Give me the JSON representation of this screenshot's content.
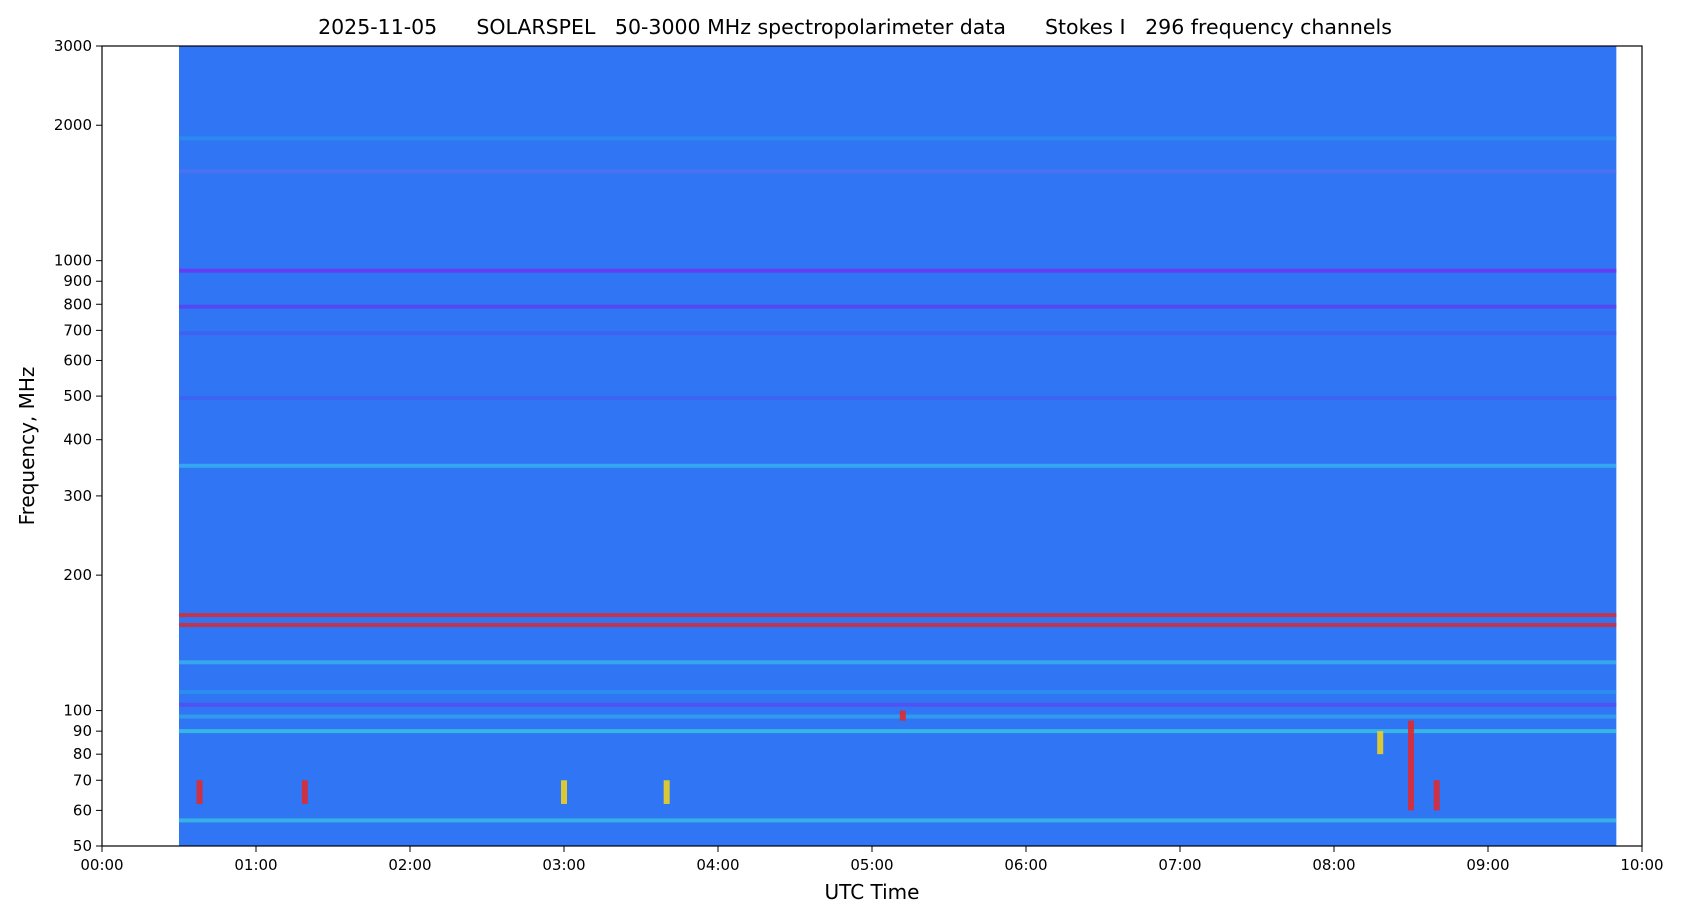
{
  "chart_data": {
    "type": "heatmap",
    "title": "2025-11-05      SOLARSPEL   50-3000 MHz spectropolarimeter data      Stokes I   296 frequency channels",
    "xlabel": "UTC Time",
    "ylabel": "Frequency, MHz",
    "x_scale": "time",
    "y_scale": "log",
    "xlim": [
      "00:00",
      "10:00"
    ],
    "ylim": [
      50,
      3000
    ],
    "data_time_range": [
      "00:30",
      "09:50"
    ],
    "x_ticks": [
      "00:00",
      "01:00",
      "02:00",
      "03:00",
      "04:00",
      "05:00",
      "06:00",
      "07:00",
      "08:00",
      "09:00",
      "10:00"
    ],
    "y_ticks": [
      "3000",
      "2000",
      "1000",
      "900",
      "800",
      "700",
      "600",
      "500",
      "400",
      "300",
      "200",
      "100",
      "90",
      "80",
      "70",
      "60",
      "50"
    ],
    "y_tick_values": [
      3000,
      2000,
      1000,
      900,
      800,
      700,
      600,
      500,
      400,
      300,
      200,
      100,
      90,
      80,
      70,
      60,
      50
    ],
    "colormap": "jet",
    "background_color": "#2f75f4",
    "bands": [
      {
        "freq_mhz": 1870,
        "color": "#2b8cf0",
        "opacity": 0.9
      },
      {
        "freq_mhz": 1580,
        "color": "#5b6ef0",
        "opacity": 0.6
      },
      {
        "freq_mhz": 950,
        "color": "#6a38f2",
        "opacity": 0.9
      },
      {
        "freq_mhz": 790,
        "color": "#5a3ef0",
        "opacity": 0.8
      },
      {
        "freq_mhz": 690,
        "color": "#4e50f0",
        "opacity": 0.5
      },
      {
        "freq_mhz": 495,
        "color": "#4658f2",
        "opacity": 0.6
      },
      {
        "freq_mhz": 350,
        "color": "#36b4f0",
        "opacity": 0.8
      },
      {
        "freq_mhz": 163,
        "color": "#d0303a",
        "opacity": 0.9
      },
      {
        "freq_mhz": 155,
        "color": "#d0303a",
        "opacity": 0.9
      },
      {
        "freq_mhz": 128,
        "color": "#3cc8e8",
        "opacity": 0.6
      },
      {
        "freq_mhz": 110,
        "color": "#2a9cf0",
        "opacity": 0.6
      },
      {
        "freq_mhz": 103,
        "color": "#6a3af2",
        "opacity": 0.6
      },
      {
        "freq_mhz": 97,
        "color": "#33c0ea",
        "opacity": 0.5
      },
      {
        "freq_mhz": 90,
        "color": "#3ad0e0",
        "opacity": 0.7
      },
      {
        "freq_mhz": 57,
        "color": "#3ad8e0",
        "opacity": 0.6
      }
    ],
    "bursts": [
      {
        "time": "00:38",
        "freq_range": [
          62,
          70
        ],
        "color": "#e02a30"
      },
      {
        "time": "01:19",
        "freq_range": [
          62,
          70
        ],
        "color": "#e02a30"
      },
      {
        "time": "03:00",
        "freq_range": [
          62,
          70
        ],
        "color": "#f0d020"
      },
      {
        "time": "03:40",
        "freq_range": [
          62,
          70
        ],
        "color": "#f0d020"
      },
      {
        "time": "05:12",
        "freq_range": [
          95,
          100
        ],
        "color": "#e02a30"
      },
      {
        "time": "08:18",
        "freq_range": [
          80,
          90
        ],
        "color": "#f0d020"
      },
      {
        "time": "08:30",
        "freq_range": [
          60,
          95
        ],
        "color": "#e02a30"
      },
      {
        "time": "08:40",
        "freq_range": [
          60,
          70
        ],
        "color": "#e02a30"
      }
    ]
  }
}
